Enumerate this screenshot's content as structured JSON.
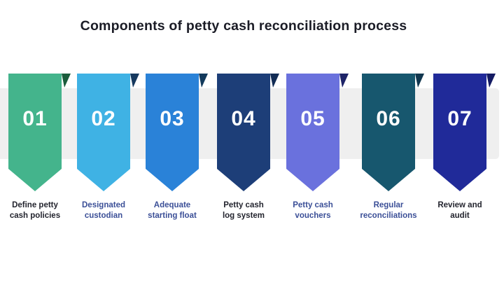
{
  "title": "Components of petty cash reconciliation process",
  "colors": {
    "background": "#ffffff",
    "band": "#efefef",
    "title_text": "#1b1c26",
    "number_text": "#ffffff",
    "label_dark": "#23242e",
    "label_blue": "#3b4f97"
  },
  "steps": [
    {
      "number": "01",
      "label": "Define petty\ncash policies",
      "body_color": "#44b48c",
      "fold_color": "#1a5c3c",
      "label_color": "#23242e"
    },
    {
      "number": "02",
      "label": "Designated\ncustodian",
      "body_color": "#3fb2e4",
      "fold_color": "#16395f",
      "label_color": "#3b4f97"
    },
    {
      "number": "03",
      "label": "Adequate\nstarting float",
      "body_color": "#2a82d8",
      "fold_color": "#133a5c",
      "label_color": "#3b4f97"
    },
    {
      "number": "04",
      "label": "Petty cash\nlog system",
      "body_color": "#1d3e78",
      "fold_color": "#122c55",
      "label_color": "#23242e"
    },
    {
      "number": "05",
      "label": "Petty cash\nvouchers",
      "body_color": "#6a71dd",
      "fold_color": "#1e2468",
      "label_color": "#3b4f97"
    },
    {
      "number": "06",
      "label": "Regular\nreconciliations",
      "body_color": "#17576e",
      "fold_color": "#11374f",
      "label_color": "#3b4f97"
    },
    {
      "number": "07",
      "label": "Review and\naudit",
      "body_color": "#202a99",
      "fold_color": "#141b63",
      "label_color": "#23242e"
    }
  ]
}
